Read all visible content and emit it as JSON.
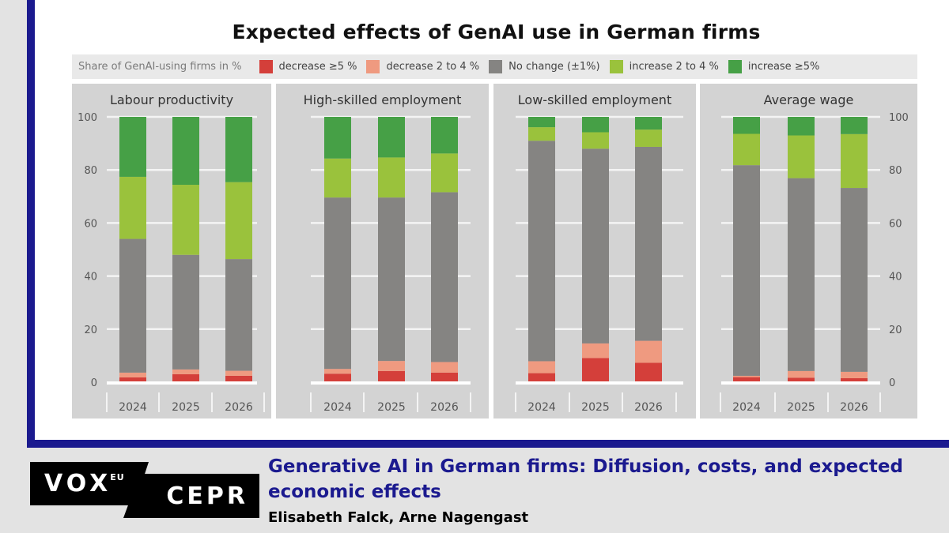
{
  "chart_data": {
    "type": "bar",
    "stacked": true,
    "title": "Expected effects of GenAI use in German firms",
    "ylabel": "Share of GenAI-using firms in %",
    "ylim": [
      0,
      100
    ],
    "yticks": [
      0,
      20,
      40,
      60,
      80,
      100
    ],
    "grid": true,
    "legend_position": "top",
    "categories": [
      "2024",
      "2025",
      "2026"
    ],
    "series_names": [
      "decrease ≥5 %",
      "decrease 2 to 4 %",
      "No change (±1%)",
      "increase 2 to 4 %",
      "increase ≥5%"
    ],
    "series_colors": [
      "#d43f3a",
      "#ef9a80",
      "#858482",
      "#9ac23c",
      "#46a046"
    ],
    "panels": [
      {
        "title": "Labour productivity",
        "series": [
          {
            "name": "decrease ≥5 %",
            "values": [
              1.8,
              3.0,
              2.4
            ]
          },
          {
            "name": "decrease 2 to 4 %",
            "values": [
              1.8,
              1.8,
              1.9
            ]
          },
          {
            "name": "No change (±1%)",
            "values": [
              50.4,
              43.2,
              42.1
            ]
          },
          {
            "name": "increase 2 to 4 %",
            "values": [
              23.4,
              26.4,
              29.0
            ]
          },
          {
            "name": "increase ≥5%",
            "values": [
              22.6,
              25.6,
              24.6
            ]
          }
        ]
      },
      {
        "title": "High-skilled employment",
        "series": [
          {
            "name": "decrease ≥5 %",
            "values": [
              3.2,
              4.2,
              3.6
            ]
          },
          {
            "name": "decrease 2 to 4 %",
            "values": [
              1.8,
              3.8,
              4.0
            ]
          },
          {
            "name": "No change (±1%)",
            "values": [
              64.6,
              61.6,
              64.0
            ]
          },
          {
            "name": "increase 2 to 4 %",
            "values": [
              14.7,
              15.1,
              14.6
            ]
          },
          {
            "name": "increase ≥5%",
            "values": [
              15.7,
              15.3,
              13.8
            ]
          }
        ]
      },
      {
        "title": "Low-skilled employment",
        "series": [
          {
            "name": "decrease ≥5 %",
            "values": [
              3.4,
              9.1,
              7.3
            ]
          },
          {
            "name": "decrease 2 to 4 %",
            "values": [
              4.5,
              5.5,
              8.3
            ]
          },
          {
            "name": "No change (±1%)",
            "values": [
              83.1,
              73.4,
              73.1
            ]
          },
          {
            "name": "increase 2 to 4 %",
            "values": [
              5.1,
              6.2,
              6.5
            ]
          },
          {
            "name": "increase ≥5%",
            "values": [
              3.9,
              5.8,
              4.8
            ]
          }
        ]
      },
      {
        "title": "Average wage",
        "series": [
          {
            "name": "decrease ≥5 %",
            "values": [
              1.9,
              1.7,
              1.5
            ]
          },
          {
            "name": "decrease 2 to 4 %",
            "values": [
              0.5,
              2.5,
              2.4
            ]
          },
          {
            "name": "No change (±1%)",
            "values": [
              79.4,
              72.7,
              69.3
            ]
          },
          {
            "name": "increase 2 to 4 %",
            "values": [
              11.8,
              16.1,
              20.3
            ]
          },
          {
            "name": "increase ≥5%",
            "values": [
              6.4,
              7.0,
              6.5
            ]
          }
        ]
      }
    ]
  },
  "legend": {
    "lead": "Share of GenAI-using firms in %",
    "items": [
      {
        "label": "decrease ≥5 %",
        "color": "#d43f3a"
      },
      {
        "label": "decrease 2 to 4 %",
        "color": "#ef9a80"
      },
      {
        "label": "No change (±1%)",
        "color": "#858482"
      },
      {
        "label": "increase 2 to 4 %",
        "color": "#9ac23c"
      },
      {
        "label": "increase ≥5%",
        "color": "#46a046"
      }
    ]
  },
  "branding": {
    "vox": "VOX",
    "vox_sup": "EU",
    "cepr": "CEPR"
  },
  "article": {
    "title": "Generative AI in German firms: Diffusion, costs, and expected economic effects",
    "authors": "Elisabeth Falck, Arne Nagengast"
  }
}
